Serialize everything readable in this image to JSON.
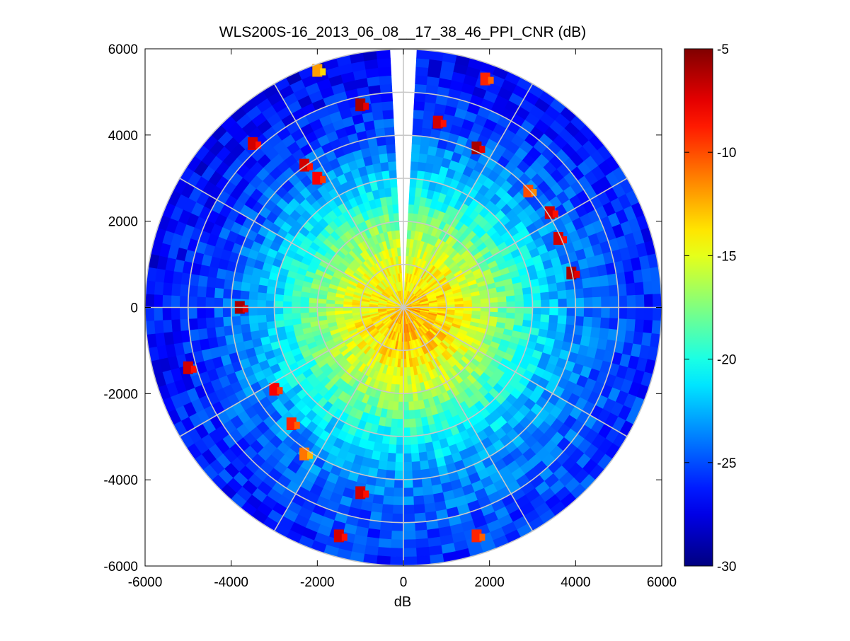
{
  "chart_data": {
    "type": "heatmap",
    "subtype": "polar-ppi-scan",
    "title": "WLS200S-16_2013_06_08__17_38_46_PPI_CNR (dB)",
    "xlabel": "dB",
    "ylabel": "",
    "xlim": [
      -6000,
      6000
    ],
    "ylim": [
      -6000,
      6000
    ],
    "xticks": [
      -6000,
      -4000,
      -2000,
      0,
      2000,
      4000,
      6000
    ],
    "yticks": [
      -6000,
      -4000,
      -2000,
      0,
      2000,
      4000,
      6000
    ],
    "x_tick_labels": [
      "-6000",
      "-4000",
      "-2000",
      "0",
      "2000",
      "4000",
      "6000"
    ],
    "y_tick_labels": [
      "-6000",
      "-4000",
      "-2000",
      "0",
      "2000",
      "4000",
      "6000"
    ],
    "max_range": 6000,
    "range_rings": [
      1000,
      2000,
      3000,
      4000,
      5000,
      6000
    ],
    "radial_lines_deg": [
      0,
      30,
      60,
      90,
      120,
      150,
      180,
      210,
      240,
      270,
      300,
      330
    ],
    "gaps_bearing_deg": [
      {
        "from": -2,
        "to": 2,
        "description": "blank sector to the north"
      }
    ],
    "colormap": "jet",
    "colorbar": {
      "min": -30,
      "max": -5,
      "ticks": [
        -30,
        -25,
        -20,
        -15,
        -10,
        -5
      ],
      "tick_labels": [
        "-30",
        "-25",
        "-20",
        "-15",
        "-10",
        "-5"
      ]
    },
    "cnr_profile_by_range": [
      {
        "range": 0,
        "cnr": -13
      },
      {
        "range": 1000,
        "cnr": -14
      },
      {
        "range": 2000,
        "cnr": -17
      },
      {
        "range": 3000,
        "cnr": -21
      },
      {
        "range": 4000,
        "cnr": -24
      },
      {
        "range": 5000,
        "cnr": -25.5
      },
      {
        "range": 6000,
        "cnr": -26.5
      }
    ],
    "hotspots": [
      {
        "x": -3800,
        "y": 0,
        "cnr": -6
      },
      {
        "x": -5000,
        "y": -1400,
        "cnr": -7
      },
      {
        "x": -3500,
        "y": 3800,
        "cnr": -7
      },
      {
        "x": -2000,
        "y": 3000,
        "cnr": -8
      },
      {
        "x": -1000,
        "y": 4700,
        "cnr": -6
      },
      {
        "x": 800,
        "y": 4300,
        "cnr": -7
      },
      {
        "x": 1700,
        "y": 3700,
        "cnr": -6
      },
      {
        "x": 3400,
        "y": 2200,
        "cnr": -7
      },
      {
        "x": 3600,
        "y": 1600,
        "cnr": -7
      },
      {
        "x": 3900,
        "y": 800,
        "cnr": -6
      },
      {
        "x": -2600,
        "y": -2700,
        "cnr": -9
      },
      {
        "x": -2300,
        "y": -3400,
        "cnr": -11
      },
      {
        "x": -1000,
        "y": -4300,
        "cnr": -7
      },
      {
        "x": -1500,
        "y": -5300,
        "cnr": -7
      },
      {
        "x": 1700,
        "y": -5300,
        "cnr": -9
      },
      {
        "x": -2000,
        "y": 5500,
        "cnr": -12
      },
      {
        "x": 2900,
        "y": 2700,
        "cnr": -10
      },
      {
        "x": -2300,
        "y": 3300,
        "cnr": -7
      },
      {
        "x": 1900,
        "y": 5300,
        "cnr": -9
      },
      {
        "x": -3000,
        "y": -1900,
        "cnr": -8
      }
    ]
  },
  "colors": {
    "ring_line": "#c8c8c8",
    "axis": "#000000",
    "background": "#ffffff"
  }
}
